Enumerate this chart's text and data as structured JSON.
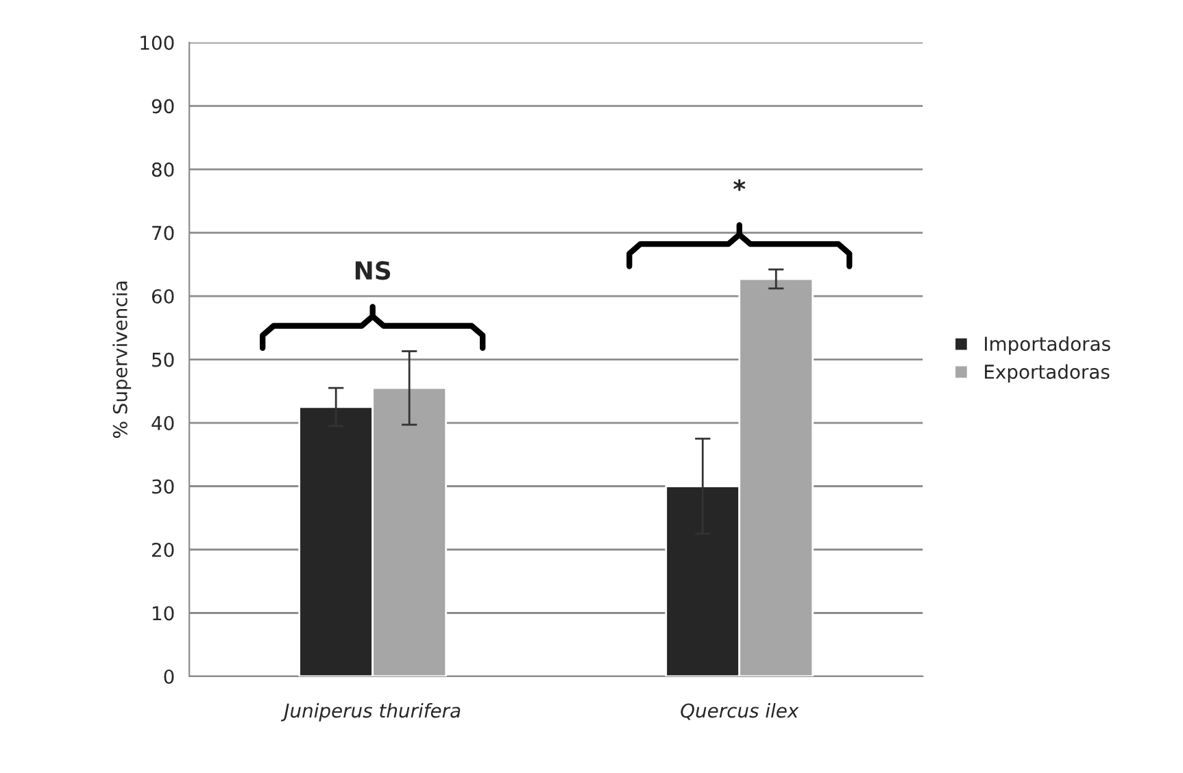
{
  "chart_data": {
    "type": "bar",
    "ylabel": "% Supervivencia",
    "categories": [
      "Juniperus thurifera",
      "Quercus ilex"
    ],
    "series": [
      {
        "name": "Importadoras",
        "color": "#262626",
        "values": [
          42.5,
          30.0
        ],
        "errors": [
          3.0,
          7.5
        ]
      },
      {
        "name": "Exportadoras",
        "color": "#a6a6a6",
        "values": [
          45.5,
          62.7
        ],
        "errors": [
          5.8,
          1.5
        ]
      }
    ],
    "ylim": [
      0,
      100
    ],
    "yticks": [
      0,
      10,
      20,
      30,
      40,
      50,
      60,
      70,
      80,
      90,
      100
    ],
    "grid": "y",
    "legend": "right",
    "annotations": [
      "NS",
      "*"
    ]
  }
}
